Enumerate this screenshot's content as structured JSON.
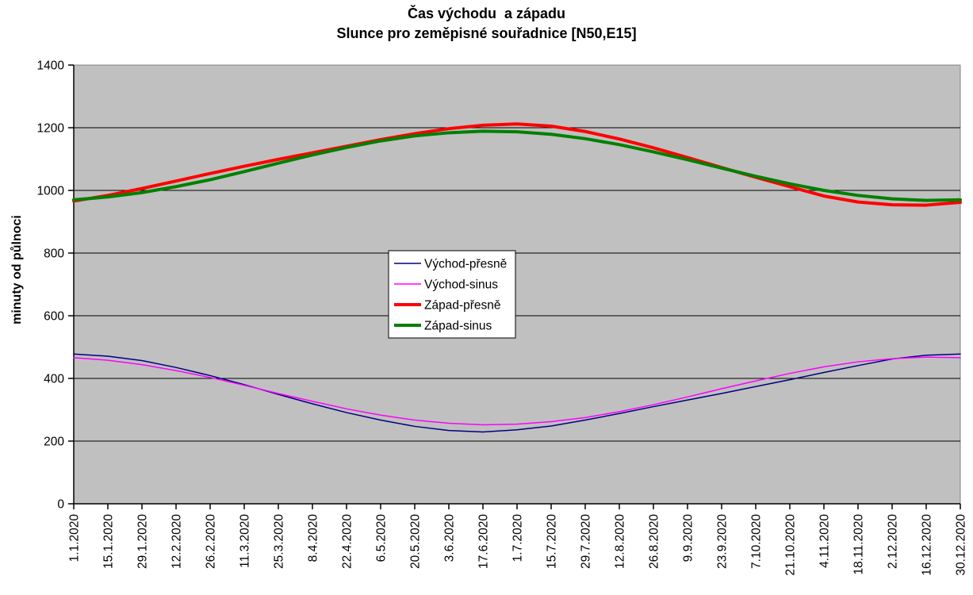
{
  "accent_colors": {
    "plot_background": "#C0C0C0",
    "plot_border": "#848284",
    "gridline": "#000000",
    "axis": "#000000",
    "legend_background": "#FFFFFF",
    "legend_border": "#000000",
    "text": "#000000",
    "page_background": "#FFFFFF"
  },
  "chart_data": {
    "type": "line",
    "title": "Čas východu  a západu",
    "subtitle": "Slunce pro zeměpisné souřadnice [N50,E15]",
    "xlabel": "",
    "ylabel": "minuty od půlnoci",
    "ylim": [
      0,
      1400
    ],
    "ytick_interval": 200,
    "grid": "horizontal",
    "legend_position": "center",
    "categories": [
      "1.1.2020",
      "15.1.2020",
      "29.1.2020",
      "12.2.2020",
      "26.2.2020",
      "11.3.2020",
      "25.3.2020",
      "8.4.2020",
      "22.4.2020",
      "6.5.2020",
      "20.5.2020",
      "3.6.2020",
      "17.6.2020",
      "1.7.2020",
      "15.7.2020",
      "29.7.2020",
      "12.8.2020",
      "26.8.2020",
      "9.9.2020",
      "23.9.2020",
      "7.10.2020",
      "21.10.2020",
      "4.11.2020",
      "18.11.2020",
      "2.12.2020",
      "16.12.2020",
      "30.12.2020"
    ],
    "series": [
      {
        "name": "Východ-přesně",
        "color": "#000080",
        "line_width": 1.5,
        "values": [
          478,
          471,
          457,
          435,
          409,
          380,
          349,
          319,
          291,
          267,
          247,
          234,
          229,
          236,
          248,
          267,
          288,
          310,
          331,
          352,
          374,
          396,
          419,
          441,
          462,
          474,
          478
        ]
      },
      {
        "name": "Východ-sinus",
        "color": "#FF00FF",
        "line_width": 1.5,
        "values": [
          466,
          458,
          444,
          425,
          403,
          378,
          352,
          327,
          303,
          283,
          267,
          257,
          252,
          254,
          262,
          275,
          294,
          316,
          341,
          367,
          392,
          416,
          437,
          453,
          463,
          468,
          466
        ]
      },
      {
        "name": "Západ-přesně",
        "color": "#FF0000",
        "line_width": 4,
        "values": [
          966,
          984,
          1006,
          1030,
          1054,
          1077,
          1099,
          1120,
          1141,
          1162,
          1181,
          1197,
          1208,
          1212,
          1205,
          1188,
          1164,
          1136,
          1105,
          1073,
          1042,
          1012,
          982,
          963,
          954,
          953,
          962
        ]
      },
      {
        "name": "Západ-sinus",
        "color": "#008000",
        "line_width": 4,
        "values": [
          970,
          979,
          993,
          1012,
          1034,
          1060,
          1087,
          1113,
          1137,
          1158,
          1174,
          1184,
          1189,
          1187,
          1179,
          1165,
          1146,
          1123,
          1098,
          1071,
          1045,
          1021,
          1000,
          984,
          973,
          968,
          970
        ]
      }
    ]
  }
}
